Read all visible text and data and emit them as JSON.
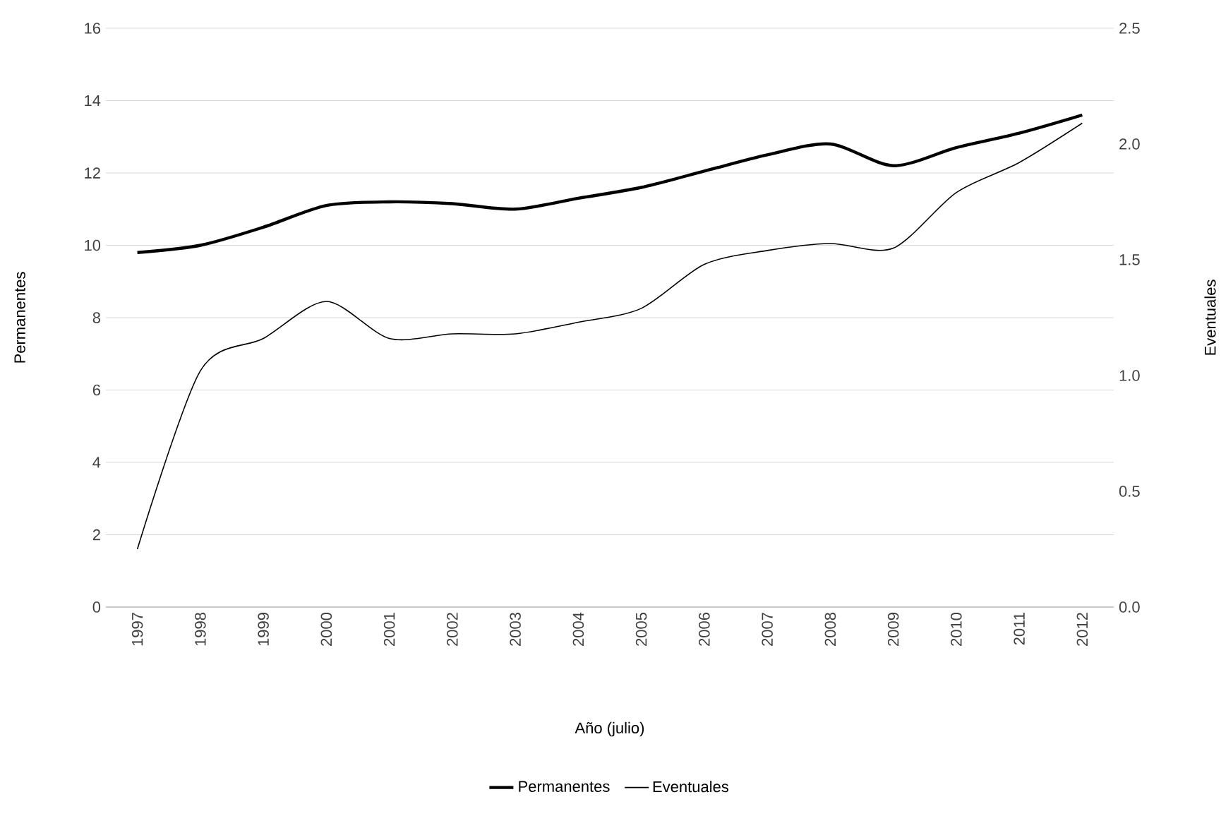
{
  "chart_data": {
    "type": "line",
    "xlabel": "Año (julio)",
    "ylabel": "Permanentes",
    "y2label": "Eventuales",
    "categories": [
      "1997",
      "1998",
      "1999",
      "2000",
      "2001",
      "2002",
      "2003",
      "2004",
      "2005",
      "2006",
      "2007",
      "2008",
      "2009",
      "2010",
      "2011",
      "2012"
    ],
    "series": [
      {
        "name": "Permanentes",
        "color": "#000000",
        "values": [
          9.8,
          10.0,
          10.5,
          11.1,
          11.2,
          11.15,
          11.0,
          11.3,
          11.6,
          12.05,
          12.5,
          12.8,
          12.2,
          12.7,
          13.1,
          13.6
        ]
      },
      {
        "name": "Eventuales",
        "color": "#000000",
        "axis": "y2",
        "values": [
          0.25,
          1.02,
          1.16,
          1.32,
          1.16,
          1.18,
          1.18,
          1.23,
          1.29,
          1.48,
          1.54,
          1.57,
          1.55,
          1.79,
          1.92,
          2.09
        ]
      }
    ],
    "ylim": [
      0,
      16
    ],
    "yticks": [
      0,
      2,
      4,
      6,
      8,
      10,
      12,
      14,
      16
    ],
    "y2lim": [
      0,
      2.5
    ],
    "y2ticks": [
      {
        "value": 0,
        "label": "0.0"
      },
      {
        "value": 0.5,
        "label": "0.5"
      },
      {
        "value": 1,
        "label": "1.0"
      },
      {
        "value": 1.5,
        "label": "1.5"
      },
      {
        "value": 2,
        "label": "2.0"
      },
      {
        "value": 2.5,
        "label": "2.5"
      }
    ],
    "grid": "y",
    "legend": "bottom"
  }
}
